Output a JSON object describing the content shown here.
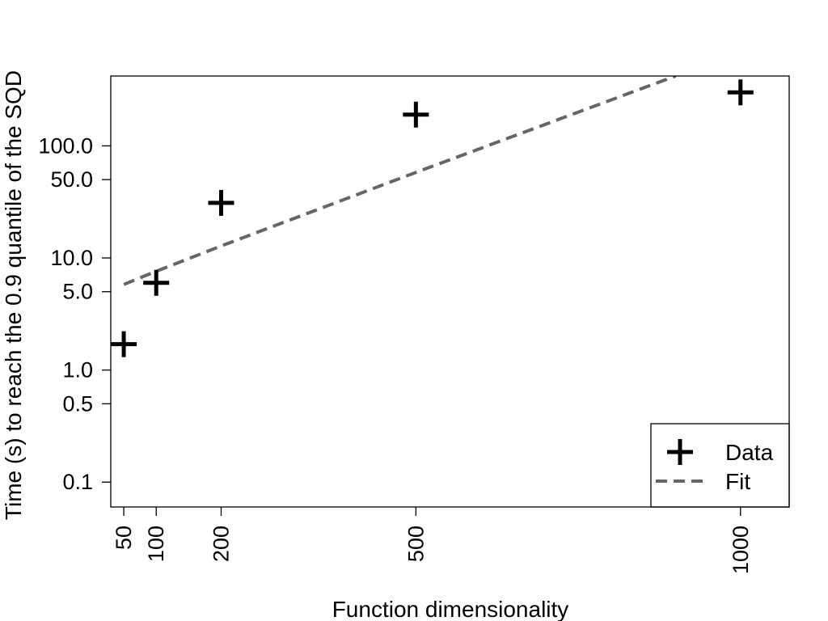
{
  "chart_data": {
    "type": "scatter",
    "title": "",
    "xlabel": "Function dimensionality",
    "ylabel": "Time (s) to reach the 0.9 quantile of the SQD",
    "x_scale": "linear",
    "y_scale": "log",
    "xlim": [
      30,
      1075
    ],
    "ylim": [
      0.06,
      420
    ],
    "x_ticks": [
      50,
      100,
      200,
      500,
      1000
    ],
    "x_tick_labels": [
      "50",
      "100",
      "200",
      "500",
      "1000"
    ],
    "y_ticks": [
      0.1,
      0.5,
      1.0,
      5.0,
      10.0,
      50.0,
      100.0
    ],
    "y_tick_labels": [
      "0.1",
      "0.5",
      "1.0",
      "5.0",
      "10.0",
      "50.0",
      "100.0"
    ],
    "grid": false,
    "legend_position": "bottom-right",
    "series": [
      {
        "name": "Data",
        "kind": "markers",
        "marker": "plus",
        "color": "#000000",
        "x": [
          50,
          100,
          200,
          500,
          1000
        ],
        "y": [
          1.7,
          6.0,
          31.0,
          190.0,
          300.0
        ]
      },
      {
        "name": "Fit",
        "kind": "line",
        "line_style": "dashed",
        "color": "#666666",
        "x": [
          50,
          100,
          200,
          500,
          900
        ],
        "y": [
          5.8,
          7.6,
          12.8,
          58.0,
          420.0
        ]
      }
    ]
  }
}
